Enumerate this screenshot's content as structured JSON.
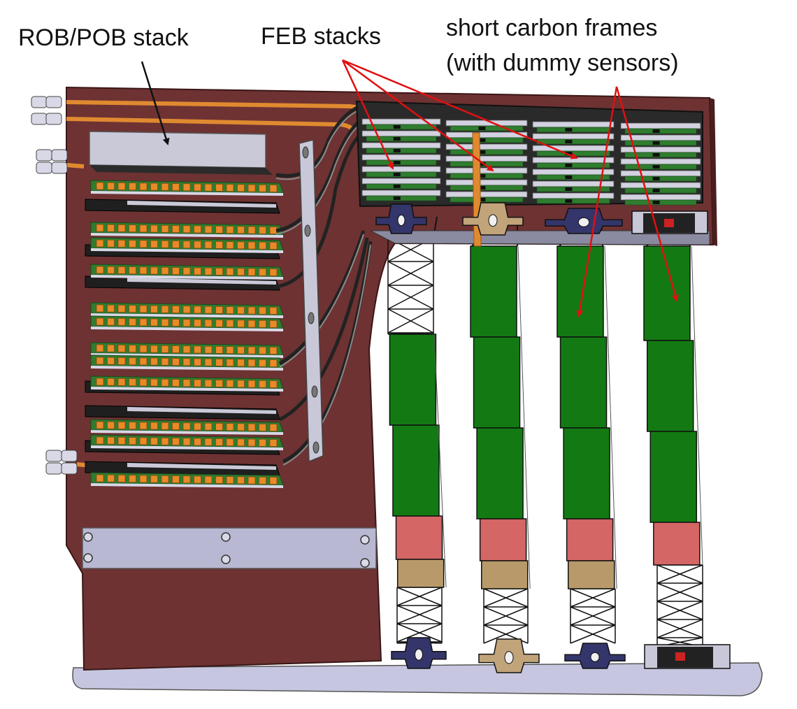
{
  "labels": {
    "rob_pob": "ROB/POB stack",
    "feb": "FEB stacks",
    "carbon_line1": "short carbon frames",
    "carbon_line2": "(with dummy sensors)"
  },
  "colors": {
    "panel": "#6e3232",
    "panel_edge": "#3a1616",
    "base_plate": "#c6c6e0",
    "board_green": "#2f7d2f",
    "chip_orange": "#e88a28",
    "rail_gray": "#c8c8d4",
    "sensor_green": "#137a13",
    "sensor_pink": "#d46666",
    "sensor_tan": "#b89a6a",
    "arrow_red": "#e01010",
    "pipe_orange": "#e08a30",
    "bracket_navy": "#34356a",
    "bracket_tan": "#c2a47a",
    "bracket_black": "#222222"
  }
}
